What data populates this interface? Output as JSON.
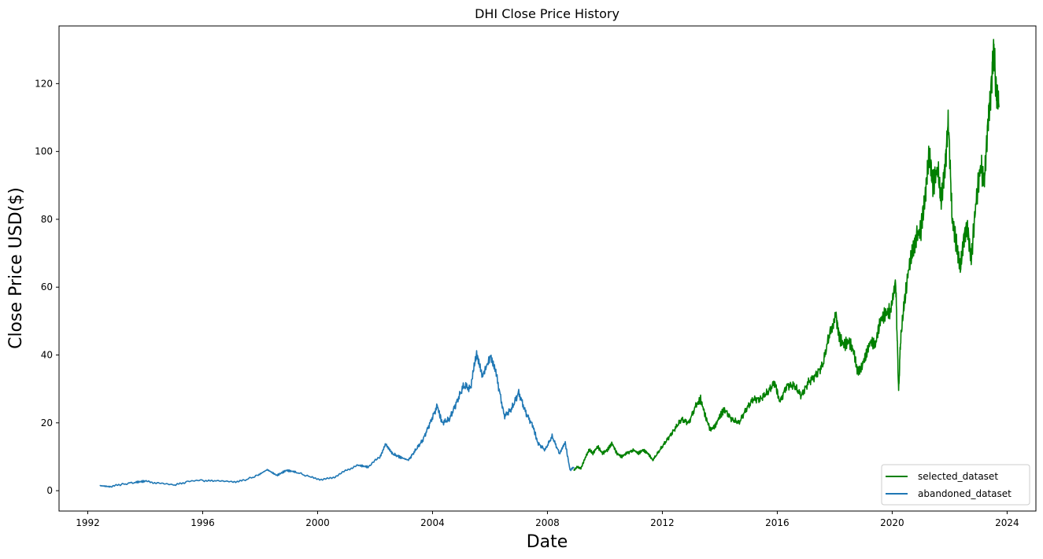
{
  "chart_data": {
    "type": "line",
    "title": "DHI Close Price History",
    "xlabel": "Date",
    "ylabel": "Close Price USD($)",
    "xlim": [
      "1991-01-01",
      "2025-01-01"
    ],
    "ylim": [
      -6,
      137
    ],
    "x_ticks": [
      "1992",
      "1996",
      "2000",
      "2004",
      "2008",
      "2012",
      "2016",
      "2020",
      "2024"
    ],
    "y_ticks": [
      0,
      20,
      40,
      60,
      80,
      100,
      120
    ],
    "grid": false,
    "legend_position": "lower-right",
    "series": [
      {
        "name": "selected_dataset",
        "color": "#008000",
        "points": [
          [
            "2008-12-01",
            6
          ],
          [
            "2009-01-15",
            7
          ],
          [
            "2009-03-01",
            6.5
          ],
          [
            "2009-05-01",
            10
          ],
          [
            "2009-06-15",
            12
          ],
          [
            "2009-08-01",
            11
          ],
          [
            "2009-10-01",
            13
          ],
          [
            "2009-12-01",
            11
          ],
          [
            "2010-02-01",
            12
          ],
          [
            "2010-04-01",
            14
          ],
          [
            "2010-06-01",
            11
          ],
          [
            "2010-08-01",
            10
          ],
          [
            "2010-10-01",
            11
          ],
          [
            "2011-01-01",
            12
          ],
          [
            "2011-03-01",
            11
          ],
          [
            "2011-05-01",
            12
          ],
          [
            "2011-07-01",
            11
          ],
          [
            "2011-09-01",
            9
          ],
          [
            "2011-12-01",
            12
          ],
          [
            "2012-03-01",
            15
          ],
          [
            "2012-06-01",
            18
          ],
          [
            "2012-09-01",
            21
          ],
          [
            "2012-12-01",
            20
          ],
          [
            "2013-03-01",
            25
          ],
          [
            "2013-05-01",
            27
          ],
          [
            "2013-07-01",
            22
          ],
          [
            "2013-09-01",
            18
          ],
          [
            "2013-11-01",
            19
          ],
          [
            "2014-01-01",
            22
          ],
          [
            "2014-03-01",
            24
          ],
          [
            "2014-06-01",
            21
          ],
          [
            "2014-09-01",
            20
          ],
          [
            "2014-12-01",
            24
          ],
          [
            "2015-03-01",
            27
          ],
          [
            "2015-06-01",
            27
          ],
          [
            "2015-09-01",
            29
          ],
          [
            "2015-12-01",
            32
          ],
          [
            "2016-02-01",
            26
          ],
          [
            "2016-05-01",
            31
          ],
          [
            "2016-08-01",
            31
          ],
          [
            "2016-11-01",
            28
          ],
          [
            "2017-02-01",
            32
          ],
          [
            "2017-05-01",
            34
          ],
          [
            "2017-08-01",
            37
          ],
          [
            "2017-11-01",
            47
          ],
          [
            "2018-01-15",
            52
          ],
          [
            "2018-03-01",
            45
          ],
          [
            "2018-05-01",
            43
          ],
          [
            "2018-07-01",
            44
          ],
          [
            "2018-09-01",
            41
          ],
          [
            "2018-10-15",
            35
          ],
          [
            "2018-12-01",
            36
          ],
          [
            "2019-02-01",
            40
          ],
          [
            "2019-04-01",
            44
          ],
          [
            "2019-06-01",
            43
          ],
          [
            "2019-08-01",
            50
          ],
          [
            "2019-10-01",
            52
          ],
          [
            "2019-12-01",
            53
          ],
          [
            "2020-02-15",
            61
          ],
          [
            "2020-03-23",
            29
          ],
          [
            "2020-04-15",
            44
          ],
          [
            "2020-06-01",
            55
          ],
          [
            "2020-08-01",
            66
          ],
          [
            "2020-09-15",
            70
          ],
          [
            "2020-11-01",
            75
          ],
          [
            "2021-01-01",
            77
          ],
          [
            "2021-03-01",
            88
          ],
          [
            "2021-04-15",
            100
          ],
          [
            "2021-06-01",
            90
          ],
          [
            "2021-08-01",
            95
          ],
          [
            "2021-09-15",
            85
          ],
          [
            "2021-11-01",
            95
          ],
          [
            "2021-12-15",
            109
          ],
          [
            "2022-02-01",
            80
          ],
          [
            "2022-04-01",
            72
          ],
          [
            "2022-05-15",
            65
          ],
          [
            "2022-07-01",
            75
          ],
          [
            "2022-08-15",
            78
          ],
          [
            "2022-10-01",
            68
          ],
          [
            "2022-12-01",
            85
          ],
          [
            "2023-02-01",
            96
          ],
          [
            "2023-03-15",
            91
          ],
          [
            "2023-05-01",
            108
          ],
          [
            "2023-06-15",
            120
          ],
          [
            "2023-07-15",
            130
          ],
          [
            "2023-08-15",
            118
          ],
          [
            "2023-09-20",
            113
          ]
        ]
      },
      {
        "name": "abandoned_dataset",
        "color": "#1f77b4",
        "points": [
          [
            "1992-06-01",
            1.5
          ],
          [
            "1992-10-01",
            1.2
          ],
          [
            "1993-03-01",
            1.8
          ],
          [
            "1993-09-01",
            2.5
          ],
          [
            "1994-01-01",
            2.8
          ],
          [
            "1994-06-01",
            2.2
          ],
          [
            "1995-01-01",
            1.6
          ],
          [
            "1995-06-01",
            2.5
          ],
          [
            "1996-01-01",
            3
          ],
          [
            "1996-06-01",
            2.8
          ],
          [
            "1997-01-01",
            2.5
          ],
          [
            "1997-06-01",
            3
          ],
          [
            "1997-12-01",
            4.5
          ],
          [
            "1998-04-01",
            6.2
          ],
          [
            "1998-08-01",
            4.5
          ],
          [
            "1998-12-01",
            6
          ],
          [
            "1999-04-01",
            5.5
          ],
          [
            "1999-10-01",
            4
          ],
          [
            "2000-03-01",
            3.2
          ],
          [
            "2000-08-01",
            4
          ],
          [
            "2001-01-01",
            6
          ],
          [
            "2001-06-01",
            7.5
          ],
          [
            "2001-10-01",
            7
          ],
          [
            "2002-03-01",
            10
          ],
          [
            "2002-05-15",
            13.5
          ],
          [
            "2002-08-01",
            11
          ],
          [
            "2002-11-01",
            10
          ],
          [
            "2003-03-01",
            9
          ],
          [
            "2003-06-01",
            12
          ],
          [
            "2003-09-01",
            15
          ],
          [
            "2003-12-01",
            20
          ],
          [
            "2004-03-01",
            25
          ],
          [
            "2004-05-01",
            20
          ],
          [
            "2004-08-01",
            21
          ],
          [
            "2004-11-01",
            26
          ],
          [
            "2005-02-01",
            31
          ],
          [
            "2005-05-01",
            30
          ],
          [
            "2005-07-15",
            41
          ],
          [
            "2005-10-01",
            34
          ],
          [
            "2006-01-15",
            40
          ],
          [
            "2006-04-01",
            33
          ],
          [
            "2006-07-01",
            22
          ],
          [
            "2006-10-01",
            24
          ],
          [
            "2007-01-01",
            29
          ],
          [
            "2007-04-01",
            23
          ],
          [
            "2007-07-01",
            19
          ],
          [
            "2007-09-01",
            14
          ],
          [
            "2007-12-01",
            12
          ],
          [
            "2008-03-01",
            16
          ],
          [
            "2008-06-01",
            11
          ],
          [
            "2008-08-15",
            14
          ],
          [
            "2008-10-15",
            6
          ],
          [
            "2008-12-01",
            7
          ]
        ]
      }
    ]
  }
}
